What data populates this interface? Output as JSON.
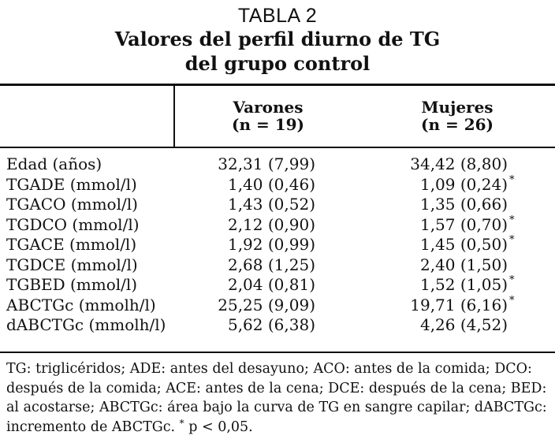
{
  "table": {
    "label": "TABLA 2",
    "caption_line1": "Valores del perfil diurno de TG",
    "caption_line2": "del grupo control",
    "columns": [
      {
        "name": "Varones",
        "n": "(n = 19)"
      },
      {
        "name": "Mujeres",
        "n": "(n = 26)"
      }
    ],
    "rows": [
      {
        "label": "Edad (años)",
        "varones": "32,31 (7,99)",
        "mujeres": "34,42 (8,80)",
        "mark": ""
      },
      {
        "label": "TGADE (mmol/l)",
        "varones": "1,40 (0,46)",
        "mujeres": "1,09 (0,24)",
        "mark": "*"
      },
      {
        "label": "TGACO (mmol/l)",
        "varones": "1,43 (0,52)",
        "mujeres": "1,35 (0,66)",
        "mark": ""
      },
      {
        "label": "TGDCO (mmol/l)",
        "varones": "2,12 (0,90)",
        "mujeres": "1,57 (0,70)",
        "mark": "*"
      },
      {
        "label": "TGACE (mmol/l)",
        "varones": "1,92 (0,99)",
        "mujeres": "1,45 (0,50)",
        "mark": "*"
      },
      {
        "label": "TGDCE (mmol/l)",
        "varones": "2,68 (1,25)",
        "mujeres": "2,40 (1,50)",
        "mark": ""
      },
      {
        "label": "TGBED (mmol/l)",
        "varones": "2,04 (0,81)",
        "mujeres": "1,52 (1,05)",
        "mark": "*"
      },
      {
        "label": "ABCTGc (mmolh/l)",
        "varones": "25,25 (9,09)",
        "mujeres": "19,71 (6,16)",
        "mark": "*"
      },
      {
        "label": "dABCTGc (mmolh/l)",
        "varones": "5,62 (6,38)",
        "mujeres": "4,26 (4,52)",
        "mark": ""
      }
    ],
    "footnote": {
      "line1": "TG: triglicéridos; ADE: antes del desayuno; ACO: antes de la comida; DCO:",
      "line2": "después de la comida; ACE: antes de la cena; DCE: después de la cena; BED:",
      "line3": "al acostarse; ABCTGc: área bajo la curva de TG en sangre capilar; dABCTGc:",
      "line4_text": "incremento de ABCTGc. ",
      "line4_mark": "*",
      "line4_end": " p < 0,05."
    }
  }
}
